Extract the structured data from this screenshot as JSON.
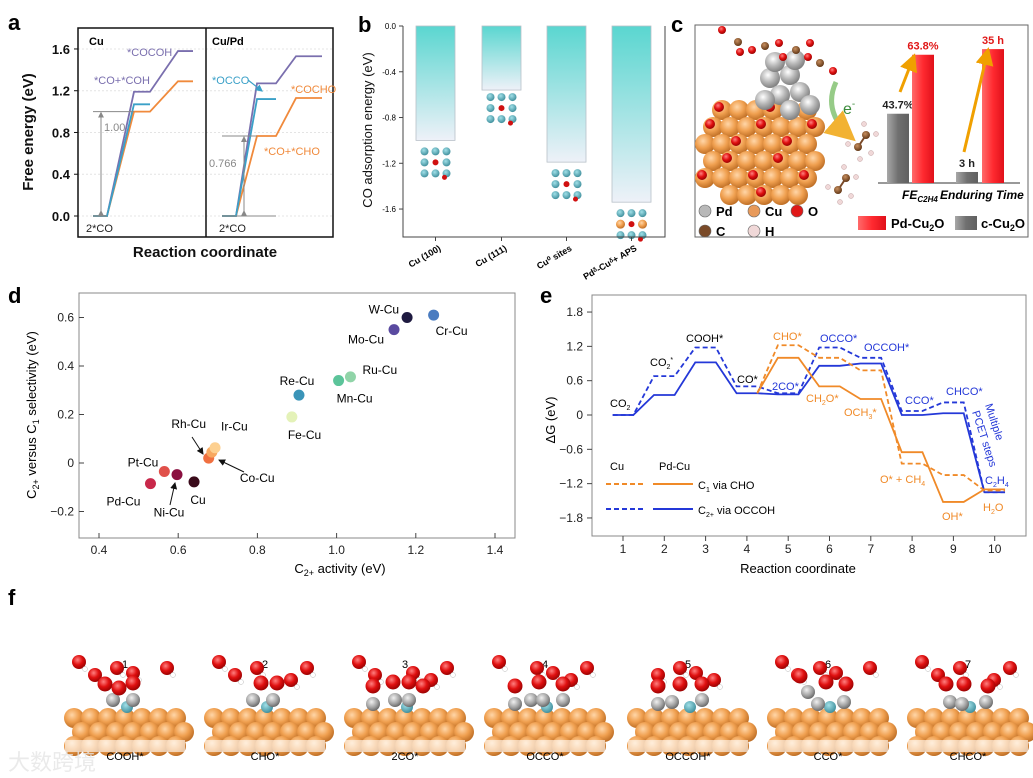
{
  "panels": {
    "a": "a",
    "b": "b",
    "c": "c",
    "d": "d",
    "e": "e",
    "f": "f"
  },
  "chart_data": [
    {
      "id": "a",
      "type": "line",
      "title": "",
      "ylabel": "Free energy (eV)",
      "xlabel": "Reaction coordinate",
      "ylim": [
        -0.1,
        1.85
      ],
      "yticks": [
        "0.0",
        "0.4",
        "0.8",
        "1.2",
        "1.6"
      ],
      "ytick_values": [
        0,
        0.4,
        0.8,
        1.2,
        1.6
      ],
      "subpanels": [
        {
          "name": "Cu",
          "series": [
            {
              "name": "purple path",
              "color": "#7a6fae",
              "levels": [
                0,
                1.19,
                1.58
              ]
            },
            {
              "name": "orange path",
              "color": "#f08a3c",
              "levels": [
                0,
                1.0,
                1.29
              ]
            },
            {
              "name": "blue path",
              "color": "#3aa0c8",
              "levels": [
                0,
                1.07
              ]
            }
          ],
          "barrier": 1.0,
          "barrier_label": "1.00",
          "labels": {
            "start": "2*CO",
            "top": "*COCOH",
            "mid": "*CO+*COH"
          }
        },
        {
          "name": "Cu/Pd",
          "series": [
            {
              "name": "purple path",
              "color": "#7a6fae",
              "levels": [
                0,
                1.27,
                1.53
              ]
            },
            {
              "name": "orange path",
              "color": "#f08a3c",
              "levels": [
                0,
                0.766,
                1.13
              ]
            },
            {
              "name": "blue path",
              "color": "#3aa0c8",
              "levels": [
                0,
                1.12
              ]
            }
          ],
          "barrier": 0.766,
          "barrier_label": "0.766",
          "labels": {
            "start": "2*CO",
            "occo": "*OCCO",
            "cocho": "*COCHO",
            "cho": "*CO+*CHO"
          }
        }
      ]
    },
    {
      "id": "b",
      "type": "bar",
      "ylabel": "CO adsorption energy (eV)",
      "categories": [
        "Cu (100)",
        "Cu (111)",
        "Cu⁰ sites",
        "Pdᵟ-Cuᵟ+ APS"
      ],
      "values": [
        -1.0,
        -0.56,
        -1.19,
        -1.54
      ],
      "ylim": [
        -1.85,
        0.0
      ],
      "yticks": [
        "0.0",
        "-0.4",
        "-0.8",
        "-1.2",
        "-1.6"
      ],
      "ytick_values": [
        0,
        -0.4,
        -0.8,
        -1.2,
        -1.6
      ],
      "colors": {
        "top": "#5ad6d0",
        "bottom": "#eef1f8"
      }
    },
    {
      "id": "c",
      "type": "bar",
      "categories": [
        "FE_C2H4",
        "Enduring Time"
      ],
      "category_main": [
        "FE",
        "Enduring Time"
      ],
      "category_sub": [
        "C2H4",
        ""
      ],
      "series": [
        {
          "name": "c-Cu2O",
          "color": "#808080",
          "values": [
            43.7,
            3
          ],
          "labels": [
            "43.7%",
            "3 h"
          ]
        },
        {
          "name": "Pd-Cu2O",
          "color": "#f5333a",
          "values": [
            63.8,
            35
          ],
          "labels": [
            "63.8%",
            "35 h"
          ]
        }
      ],
      "legend": {
        "pd": "Pd-Cu",
        "pd_sub": "2",
        "pd_end": "O",
        "c": "c-Cu",
        "c_sub": "2",
        "c_end": "O"
      },
      "atoms": [
        {
          "label": "Pd",
          "color": "#b8b8b8"
        },
        {
          "label": "Cu",
          "color": "#e89a5a"
        },
        {
          "label": "O",
          "color": "#e01818"
        },
        {
          "label": "C",
          "color": "#7a4a28"
        },
        {
          "label": "H",
          "color": "#f0d8d8"
        }
      ],
      "electron_label": "e",
      "electron_sup": "-"
    },
    {
      "id": "d",
      "type": "scatter",
      "xlabel_main": "C",
      "xlabel_sub": "2+",
      "xlabel_end": " activity (eV)",
      "ylabel_pre": "C",
      "ylabel_sub": "2+",
      "ylabel_mid": " versus C",
      "ylabel_sub2": "1",
      "ylabel_end": " selectivity (eV)",
      "xlim": [
        0.35,
        1.45
      ],
      "ylim": [
        -0.3,
        0.7
      ],
      "xticks": [
        "0.4",
        "0.6",
        "0.8",
        "1.0",
        "1.2",
        "1.4"
      ],
      "xtick_values": [
        0.4,
        0.6,
        0.8,
        1.0,
        1.2,
        1.4
      ],
      "yticks": [
        "−0.2",
        "0",
        "0.2",
        "0.4",
        "0.6"
      ],
      "ytick_values": [
        -0.2,
        0,
        0.2,
        0.4,
        0.6
      ],
      "points": [
        {
          "label": "Pd-Cu",
          "x": 0.53,
          "y": -0.085,
          "color": "#c8284a"
        },
        {
          "label": "Pt-Cu",
          "x": 0.565,
          "y": -0.035,
          "color": "#e0504a"
        },
        {
          "label": "Ni-Cu",
          "x": 0.597,
          "y": -0.048,
          "color": "#8a1040"
        },
        {
          "label": "Cu",
          "x": 0.64,
          "y": -0.078,
          "color": "#3a0a1a"
        },
        {
          "label": "Rh-Cu",
          "x": 0.677,
          "y": 0.02,
          "color": "#f07040"
        },
        {
          "label": "Co-Cu",
          "x": 0.685,
          "y": 0.045,
          "color": "#f8a860"
        },
        {
          "label": "Ir-Cu",
          "x": 0.693,
          "y": 0.063,
          "color": "#fdd090"
        },
        {
          "label": "Fe-Cu",
          "x": 0.887,
          "y": 0.19,
          "color": "#e4f2b8"
        },
        {
          "label": "Re-Cu",
          "x": 0.905,
          "y": 0.28,
          "color": "#3a94b8"
        },
        {
          "label": "Mn-Cu",
          "x": 1.005,
          "y": 0.34,
          "color": "#5cc49a"
        },
        {
          "label": "Ru-Cu",
          "x": 1.035,
          "y": 0.355,
          "color": "#90d4a8"
        },
        {
          "label": "Mo-Cu",
          "x": 1.145,
          "y": 0.55,
          "color": "#5a4aa0"
        },
        {
          "label": "W-Cu",
          "x": 1.178,
          "y": 0.6,
          "color": "#1e1a40"
        },
        {
          "label": "Cr-Cu",
          "x": 1.245,
          "y": 0.61,
          "color": "#4a7cc0"
        }
      ]
    },
    {
      "id": "e",
      "type": "line",
      "xlabel": "Reaction coordinate",
      "ylabel": "ΔG (eV)",
      "xlim": [
        0.5,
        10.9
      ],
      "ylim": [
        -2.1,
        2.1
      ],
      "xticks": [
        "1",
        "2",
        "3",
        "4",
        "5",
        "6",
        "7",
        "8",
        "9",
        "10"
      ],
      "xtick_values": [
        1,
        2,
        3,
        4,
        5,
        6,
        7,
        8,
        9,
        10
      ],
      "yticks": [
        "1.8",
        "1.2",
        "0.6",
        "0",
        "−0.6",
        "−1.2",
        "−1.8"
      ],
      "ytick_values": [
        1.8,
        1.2,
        0.6,
        0,
        -0.6,
        -1.2,
        -1.8
      ],
      "series": [
        {
          "name": "Cu C2+ via OCCOH",
          "color": "#2438d8",
          "dash": true,
          "x": [
            1,
            2,
            3,
            4,
            5,
            6,
            7,
            8,
            9,
            10
          ],
          "y": [
            0,
            0.68,
            1.18,
            0.5,
            0.38,
            1.18,
            1.0,
            0.07,
            0.22,
            -1.35
          ]
        },
        {
          "name": "Pd-Cu C2+ via OCCOH",
          "color": "#2438d8",
          "dash": false,
          "x": [
            1,
            2,
            3,
            4,
            5,
            6,
            7,
            8,
            9,
            10
          ],
          "y": [
            0,
            0.35,
            0.92,
            0.38,
            0.36,
            0.86,
            0.9,
            0.0,
            0.03,
            -1.35
          ]
        },
        {
          "name": "Cu C1 via CHO",
          "color": "#f08a28",
          "dash": true,
          "x": [
            4,
            5,
            6,
            7,
            8,
            9,
            10
          ],
          "y": [
            0.38,
            1.22,
            1.0,
            0.78,
            -0.85,
            -1.05,
            -1.32
          ]
        },
        {
          "name": "Pd-Cu C1 via CHO",
          "color": "#f08a28",
          "dash": false,
          "x": [
            4,
            5,
            6,
            7,
            8,
            9,
            10
          ],
          "y": [
            0.38,
            1.0,
            0.5,
            0.28,
            -0.65,
            -1.52,
            -1.3
          ]
        }
      ],
      "legend": {
        "cu": "Cu",
        "pdcu": "Pd-Cu",
        "c1": "C",
        "c1_sub": "1",
        "c1_end": " via CHO",
        "c2": "C",
        "c2_sub": "2+",
        "c2_end": " via OCCOH"
      },
      "annotations": {
        "co2": "CO",
        "co2_sub": "2",
        "co2s": "CO",
        "co2s_sub": "2",
        "co2s_sup": "*",
        "cooh": "COOH*",
        "co": "CO*",
        "twoco": "2CO*",
        "cho": "CHO*",
        "occo": "OCCO*",
        "occoh": "OCCOH*",
        "cco": "CCO*",
        "chco": "CHCO*",
        "ch2o": "CH",
        "ch2o_sub": "2",
        "ch2o_end": "O*",
        "och3": "OCH",
        "och3_sub": "3",
        "och3_end": "*",
        "och4": "O* + CH",
        "och4_sub": "4",
        "oh": "OH*",
        "h2o": "H",
        "h2o_sub": "2",
        "h2o_end": "O",
        "c2h4": "C",
        "c2h4_sub": "2",
        "c2h4_mid": "H",
        "c2h4_sub2": "4",
        "multiple": "Multiple",
        "pcet": "PCET steps"
      }
    }
  ],
  "panel_f": {
    "numbers": [
      "1",
      "2",
      "3",
      "4",
      "5",
      "6",
      "7"
    ],
    "labels": [
      "COOH*",
      "CHO*",
      "2CO*",
      "OCCO*",
      "OCCOH*",
      "CCO*",
      "CHCO*"
    ]
  },
  "watermark": "大数跨境"
}
